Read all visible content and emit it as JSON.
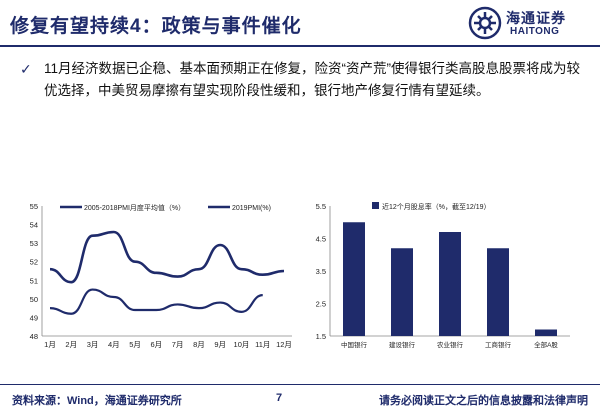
{
  "header": {
    "title": "修复有望持续4：政策与事件催化",
    "logo_text": "海通证券",
    "logo_sub": "HAITONG"
  },
  "bullet": {
    "text": "11月经济数据已企稳、基本面预期正在修复，险资“资产荒”使得银行类高股息股票将成为较优选择，中美贸易摩擦有望实现阶段性缓和，银行地产修复行情有望延续。"
  },
  "chart_data": [
    {
      "type": "line",
      "x": [
        "1月",
        "2月",
        "3月",
        "4月",
        "5月",
        "6月",
        "7月",
        "8月",
        "9月",
        "10月",
        "11月",
        "12月"
      ],
      "ylim": [
        48,
        55
      ],
      "yticks": [
        "48",
        "49",
        "50",
        "51",
        "52",
        "53",
        "54",
        "55"
      ],
      "series": [
        {
          "name": "2005-2018PMI月度平均值（%）",
          "values": [
            51.6,
            50.9,
            53.4,
            53.6,
            52.0,
            51.4,
            51.2,
            51.6,
            52.9,
            51.6,
            51.3,
            51.5
          ]
        },
        {
          "name": "2019PMI(%)",
          "values": [
            49.5,
            49.2,
            50.5,
            50.1,
            49.4,
            49.4,
            49.7,
            49.5,
            49.8,
            49.3,
            50.2,
            null
          ]
        }
      ],
      "colors": [
        "#1f2b6b",
        "#1f2b6b"
      ]
    },
    {
      "type": "bar",
      "title": "近12个月股息率（%，截至12/19）",
      "categories": [
        "中国银行",
        "建设银行",
        "农业银行",
        "工商银行",
        "全部A股"
      ],
      "values": [
        5.0,
        4.2,
        4.7,
        4.2,
        1.7
      ],
      "ylim": [
        1.5,
        5.5
      ],
      "yticks": [
        "1.5",
        "2.5",
        "3.5",
        "4.5",
        "5.5"
      ],
      "color": "#1f2b6b"
    }
  ],
  "footer": {
    "source": "资料来源：Wind，海通证券研究所",
    "page": "7",
    "disclaimer": "请务必阅读正文之后的信息披露和法律声明"
  }
}
